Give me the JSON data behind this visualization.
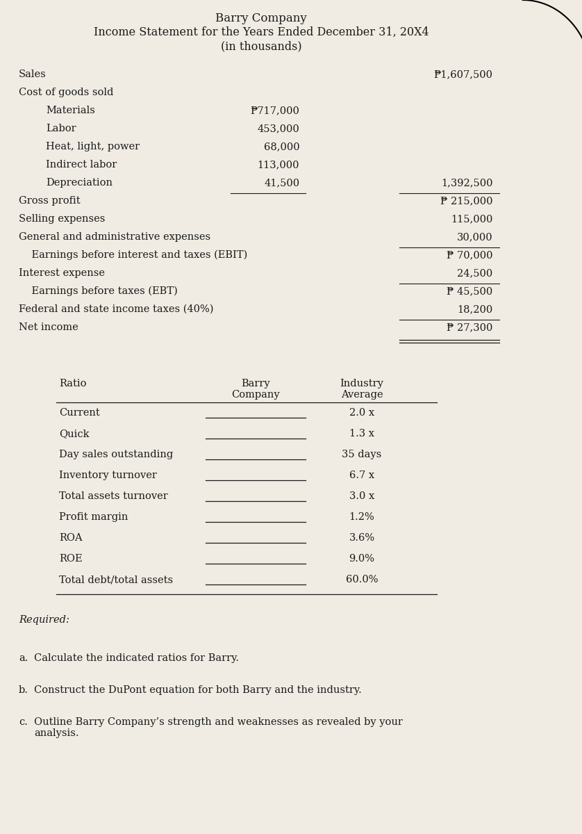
{
  "title1": "Barry Company",
  "title2": "Income Statement for the Years Ended December 31, 20X4",
  "title3": "(in thousands)",
  "income_statement": [
    {
      "label": "Sales",
      "indent": 0,
      "col2": "",
      "col3": "₱1,607,500",
      "ul2_below": false,
      "ul3_below": false
    },
    {
      "label": "Cost of goods sold",
      "indent": 0,
      "col2": "",
      "col3": "",
      "ul2_below": false,
      "ul3_below": false
    },
    {
      "label": "Materials",
      "indent": 2,
      "col2": "₱717,000",
      "col3": "",
      "ul2_below": false,
      "ul3_below": false
    },
    {
      "label": "Labor",
      "indent": 2,
      "col2": "453,000",
      "col3": "",
      "ul2_below": false,
      "ul3_below": false
    },
    {
      "label": "Heat, light, power",
      "indent": 2,
      "col2": "68,000",
      "col3": "",
      "ul2_below": false,
      "ul3_below": false
    },
    {
      "label": "Indirect labor",
      "indent": 2,
      "col2": "113,000",
      "col3": "",
      "ul2_below": false,
      "ul3_below": false
    },
    {
      "label": "Depreciation",
      "indent": 2,
      "col2": "41,500",
      "col3": "1,392,500",
      "ul2_below": true,
      "ul3_below": true
    },
    {
      "label": "Gross profit",
      "indent": 0,
      "col2": "",
      "col3": "₱ 215,000",
      "ul2_below": false,
      "ul3_below": false
    },
    {
      "label": "Selling expenses",
      "indent": 0,
      "col2": "",
      "col3": "115,000",
      "ul2_below": false,
      "ul3_below": false
    },
    {
      "label": "General and administrative expenses",
      "indent": 0,
      "col2": "",
      "col3": "30,000",
      "ul2_below": false,
      "ul3_below": true
    },
    {
      "label": "    Earnings before interest and taxes (EBIT)",
      "indent": 0,
      "col2": "",
      "col3": "₱ 70,000",
      "ul2_below": false,
      "ul3_below": false
    },
    {
      "label": "Interest expense",
      "indent": 0,
      "col2": "",
      "col3": "24,500",
      "ul2_below": false,
      "ul3_below": true
    },
    {
      "label": "    Earnings before taxes (EBT)",
      "indent": 0,
      "col2": "",
      "col3": "₱ 45,500",
      "ul2_below": false,
      "ul3_below": false
    },
    {
      "label": "Federal and state income taxes (40%)",
      "indent": 0,
      "col2": "",
      "col3": "18,200",
      "ul2_below": false,
      "ul3_below": true
    },
    {
      "label": "Net income",
      "indent": 0,
      "col2": "",
      "col3": "₱ 27,300",
      "ul2_below": false,
      "ul3_below": false
    }
  ],
  "ratios": [
    {
      "name": "Current",
      "industry": "2.0 x"
    },
    {
      "name": "Quick",
      "industry": "1.3 x"
    },
    {
      "name": "Day sales outstanding",
      "industry": "35 days"
    },
    {
      "name": "Inventory turnover",
      "industry": "6.7 x"
    },
    {
      "name": "Total assets turnover",
      "industry": "3.0 x"
    },
    {
      "name": "Profit margin",
      "industry": "1.2%"
    },
    {
      "name": "ROA",
      "industry": "3.6%"
    },
    {
      "name": "ROE",
      "industry": "9.0%"
    },
    {
      "name": "Total debt/total assets",
      "industry": "60.0%"
    }
  ],
  "required_label": "Required:",
  "requirements": [
    {
      "letter": "a.",
      "text": "Calculate the indicated ratios for Barry."
    },
    {
      "letter": "b.",
      "text": "Construct the DuPont equation for both Barry and the industry."
    },
    {
      "letter": "c.",
      "text": "Outline Barry Company’s strength and weaknesses as revealed by your\nanalysis."
    }
  ],
  "bg_color": "#f0ece3",
  "text_color": "#1a1a1a",
  "font_size": 10.5,
  "title_font_size": 11.5
}
